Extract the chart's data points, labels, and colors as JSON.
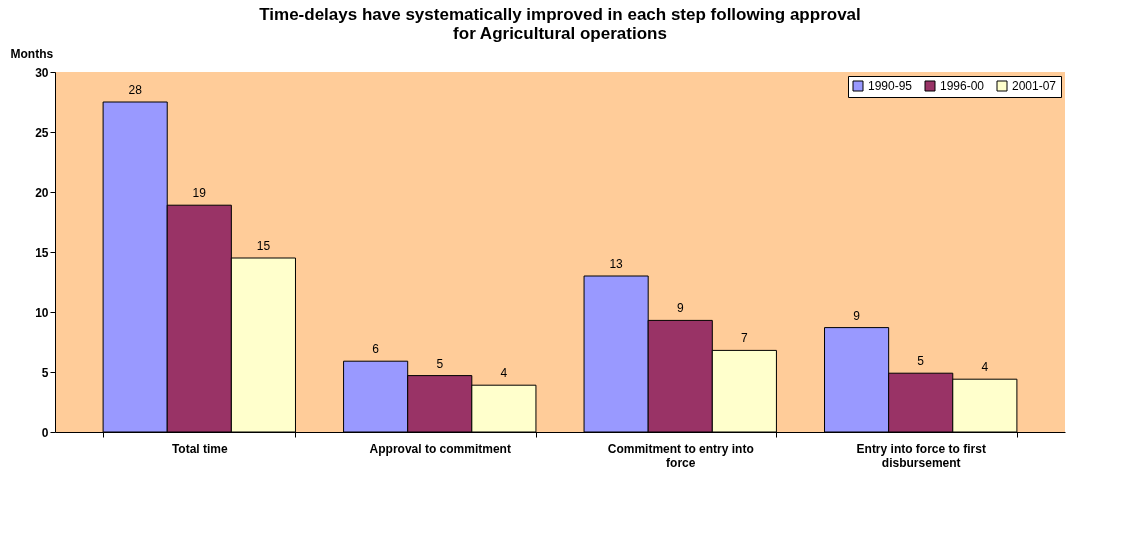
{
  "chart_data": {
    "type": "bar",
    "title": "Time-delays have systematically improved in each step following approval for Agricultural operations",
    "ylabel": "Months",
    "categories": [
      "Total time",
      "Approval to commitment",
      "Commitment to entry into force",
      "Entry into force to first disbursement"
    ],
    "series": [
      {
        "name": "1990-95",
        "color": "#9999ff",
        "values": [
          27.5,
          5.9,
          13.0,
          8.7
        ],
        "value_labels": [
          "28",
          "6",
          "13",
          "9"
        ]
      },
      {
        "name": "1996-00",
        "color": "#993366",
        "values": [
          18.9,
          4.7,
          9.3,
          4.9
        ],
        "value_labels": [
          "19",
          "5",
          "9",
          "5"
        ]
      },
      {
        "name": "2001-07",
        "color": "#ffffcc",
        "values": [
          14.5,
          3.9,
          6.8,
          4.4
        ],
        "value_labels": [
          "15",
          "4",
          "7",
          "4"
        ]
      }
    ],
    "ylim": [
      0,
      30
    ],
    "yticks": [
      0,
      5,
      10,
      15,
      20,
      25,
      30
    ],
    "grid": false,
    "legend": "top right"
  }
}
